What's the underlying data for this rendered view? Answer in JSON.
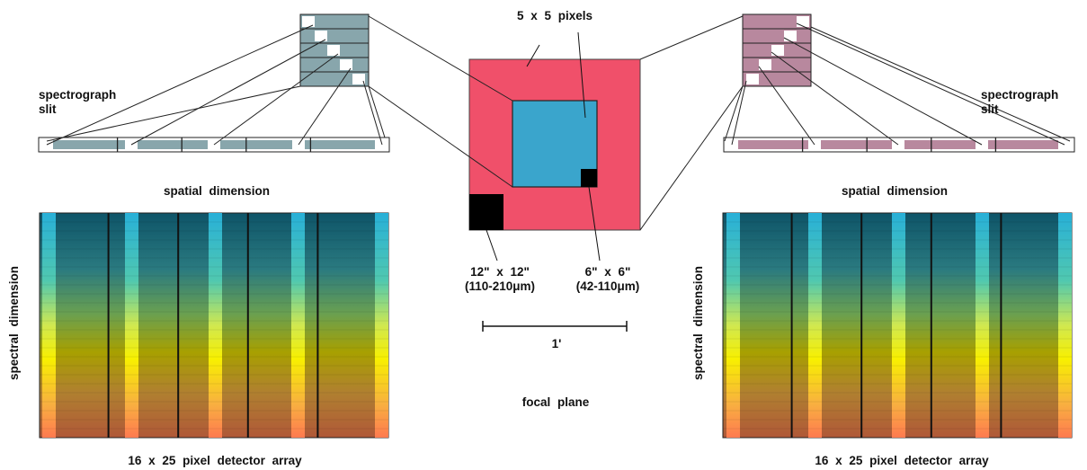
{
  "labels": {
    "pixels_5x5": "5 x 5 pixels",
    "spectrograph_slit_left_line1": "spectrograph",
    "spectrograph_slit_left_line2": "slit",
    "spectrograph_slit_right_line1": "spectrograph",
    "spectrograph_slit_right_line2": "slit",
    "spatial_dimension_left": "spatial dimension",
    "spatial_dimension_right": "spatial dimension",
    "spectral_dimension_left": "spectral dimension",
    "spectral_dimension_right": "spectral dimension",
    "large_pixel_size": "12\" x 12\"",
    "large_pixel_wavelength": "(110-210μm)",
    "small_pixel_size": "6\" x 6\"",
    "small_pixel_wavelength": "(42-110μm)",
    "scale_bar": "1'",
    "focal_plane": "focal plane",
    "detector_array_left": "16 x 25 pixel detector array",
    "detector_array_right": "16 x 25 pixel detector array"
  },
  "colors": {
    "focal_plane_red": "#f0506a",
    "focal_plane_blue": "#3aa5cc",
    "left_slicer": "#88a6ac",
    "right_slicer": "#b8889e",
    "gradient_top": "#0f5a70",
    "gradient_mid": "#a0a000",
    "gradient_bottom": "#e86040",
    "highlight_column": "#2ab0d0"
  },
  "detector": {
    "columns": 16,
    "rows": 25,
    "modules": 5
  }
}
